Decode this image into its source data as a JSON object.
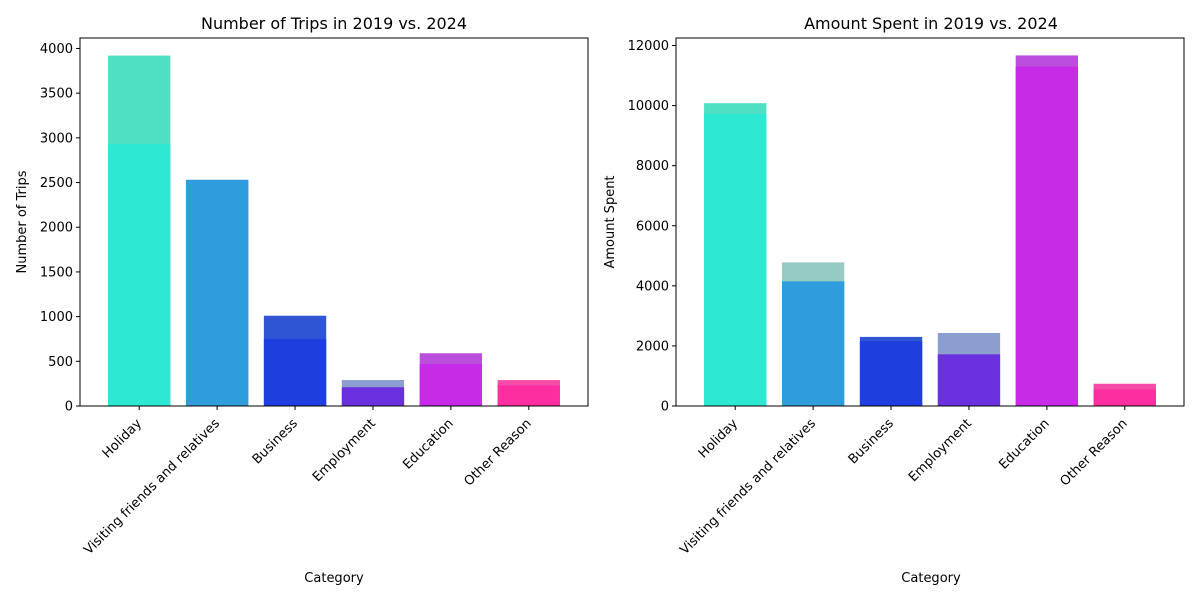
{
  "chart_data": [
    {
      "type": "bar",
      "title": "Number of Trips in 2019 vs. 2024",
      "xlabel": "Category",
      "ylabel": "Number of Trips",
      "categories": [
        "Holiday",
        "Visiting friends and relatives",
        "Business",
        "Employment",
        "Education",
        "Other Reason"
      ],
      "ylim": [
        0,
        4117
      ],
      "yticks": [
        0,
        500,
        1000,
        1500,
        2000,
        2500,
        3000,
        3500,
        4000
      ],
      "overlay": true,
      "series": [
        {
          "values": [
            3920,
            2530,
            1010,
            290,
            590,
            290
          ],
          "colors": [
            "#4fe0c4",
            "#3a9be0",
            "#2f55d4",
            "#8c9dcf",
            "#b94fdc",
            "#f54aa8"
          ]
        },
        {
          "values": [
            2930,
            2530,
            750,
            210,
            470,
            230
          ],
          "colors": [
            "#2de8d2",
            "#2f9ddd",
            "#1f3ede",
            "#6a2fde",
            "#c72be8",
            "#fd2ea0"
          ]
        }
      ]
    },
    {
      "type": "bar",
      "title": "Amount Spent in 2019 vs. 2024",
      "xlabel": "Category",
      "ylabel": "Amount Spent",
      "categories": [
        "Holiday",
        "Visiting friends and relatives",
        "Business",
        "Employment",
        "Education",
        "Other Reason"
      ],
      "ylim": [
        0,
        12250
      ],
      "yticks": [
        0,
        2000,
        4000,
        6000,
        8000,
        10000,
        12000
      ],
      "overlay": true,
      "series": [
        {
          "values": [
            10080,
            4780,
            2300,
            2430,
            11670,
            740
          ],
          "colors": [
            "#4fe0c4",
            "#96cbc4",
            "#2f55d4",
            "#8c9dcf",
            "#b94fdc",
            "#f54aa8"
          ]
        },
        {
          "values": [
            9720,
            4150,
            2160,
            1720,
            11300,
            550
          ],
          "colors": [
            "#2de8d2",
            "#2f9ddd",
            "#1f3ede",
            "#6a2fde",
            "#c72be8",
            "#fd2ea0"
          ]
        }
      ]
    }
  ]
}
